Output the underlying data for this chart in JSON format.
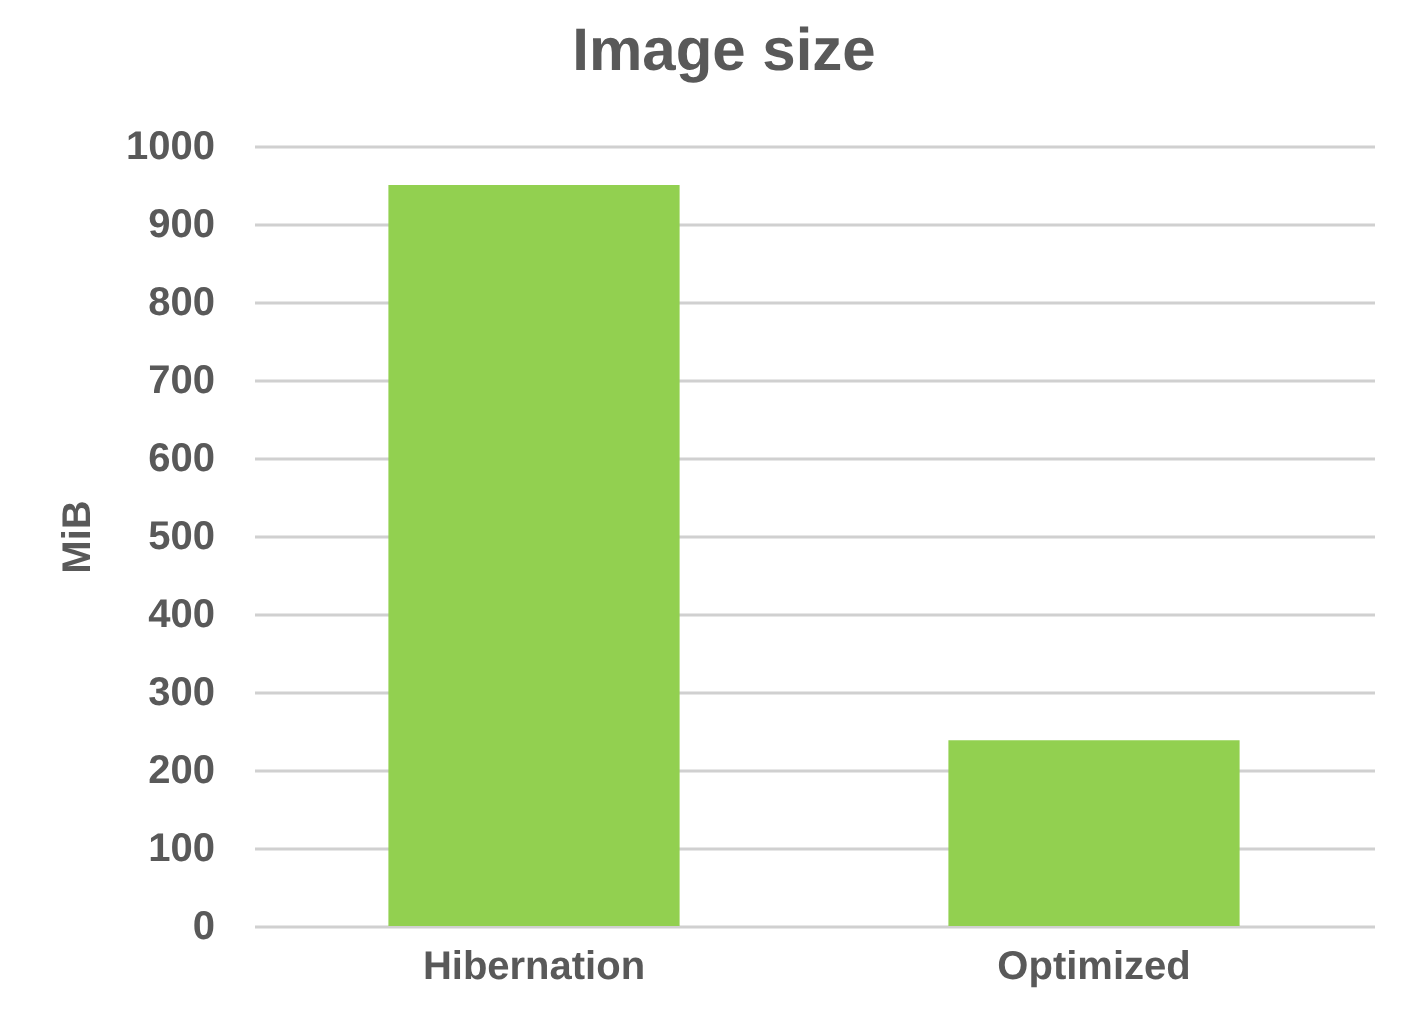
{
  "chart_data": {
    "type": "bar",
    "title": "Image size",
    "ylabel": "MiB",
    "categories": [
      "Hibernation",
      "Optimized"
    ],
    "values": [
      950,
      238
    ],
    "color": "#92d050",
    "ylim": [
      0,
      1000
    ],
    "yticks": [
      0,
      100,
      200,
      300,
      400,
      500,
      600,
      700,
      800,
      900,
      1000
    ],
    "grid": "y"
  }
}
